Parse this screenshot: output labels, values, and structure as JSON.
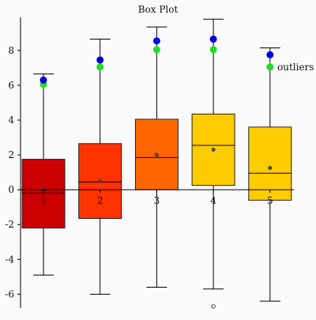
{
  "chart_data": {
    "type": "box",
    "title": "Box Plot",
    "xlabel": "",
    "ylabel": "",
    "categories": [
      "1",
      "2",
      "3",
      "4",
      "5"
    ],
    "ylim": [
      -6.8,
      9.9
    ],
    "y_ticks": [
      -6,
      -4,
      -2,
      0,
      2,
      4,
      6,
      8
    ],
    "x_ticks": [
      1,
      2,
      3,
      4,
      5
    ],
    "grid": false,
    "legend": {
      "placement": "top-right",
      "label": "outliers"
    },
    "boxes": [
      {
        "category": "1",
        "min": -4.9,
        "q1": -2.2,
        "median": -0.2,
        "q3": 1.75,
        "max": 6.65,
        "mean": 0.05,
        "color": "#cc0000",
        "marker_blue": 6.3,
        "marker_green": 6.05,
        "outliers": []
      },
      {
        "category": "2",
        "min": -6.0,
        "q1": -1.65,
        "median": 0.45,
        "q3": 2.65,
        "max": 8.65,
        "mean": 0.5,
        "color": "#ff3300",
        "marker_blue": 7.45,
        "marker_green": 7.05,
        "outliers": []
      },
      {
        "category": "3",
        "min": -5.6,
        "q1": 0.0,
        "median": 1.85,
        "q3": 4.05,
        "max": 9.35,
        "mean": 2.0,
        "color": "#ff6600",
        "marker_blue": 8.55,
        "marker_green": 8.05,
        "outliers": []
      },
      {
        "category": "4",
        "min": -5.7,
        "q1": 0.25,
        "median": 2.55,
        "q3": 4.35,
        "max": 9.8,
        "mean": 2.3,
        "color": "#ffcc00",
        "marker_blue": 8.65,
        "marker_green": 8.05,
        "outliers": [
          -6.7
        ]
      },
      {
        "category": "5",
        "min": -6.4,
        "q1": -0.6,
        "median": 0.95,
        "q3": 3.6,
        "max": 8.15,
        "mean": 1.25,
        "color": "#ffcc00",
        "marker_blue": 7.75,
        "marker_green": 7.05,
        "outliers": []
      }
    ],
    "colors": {
      "blue_marker": "#0000dd",
      "green_marker": "#22dd22",
      "axis": "#000000"
    }
  }
}
